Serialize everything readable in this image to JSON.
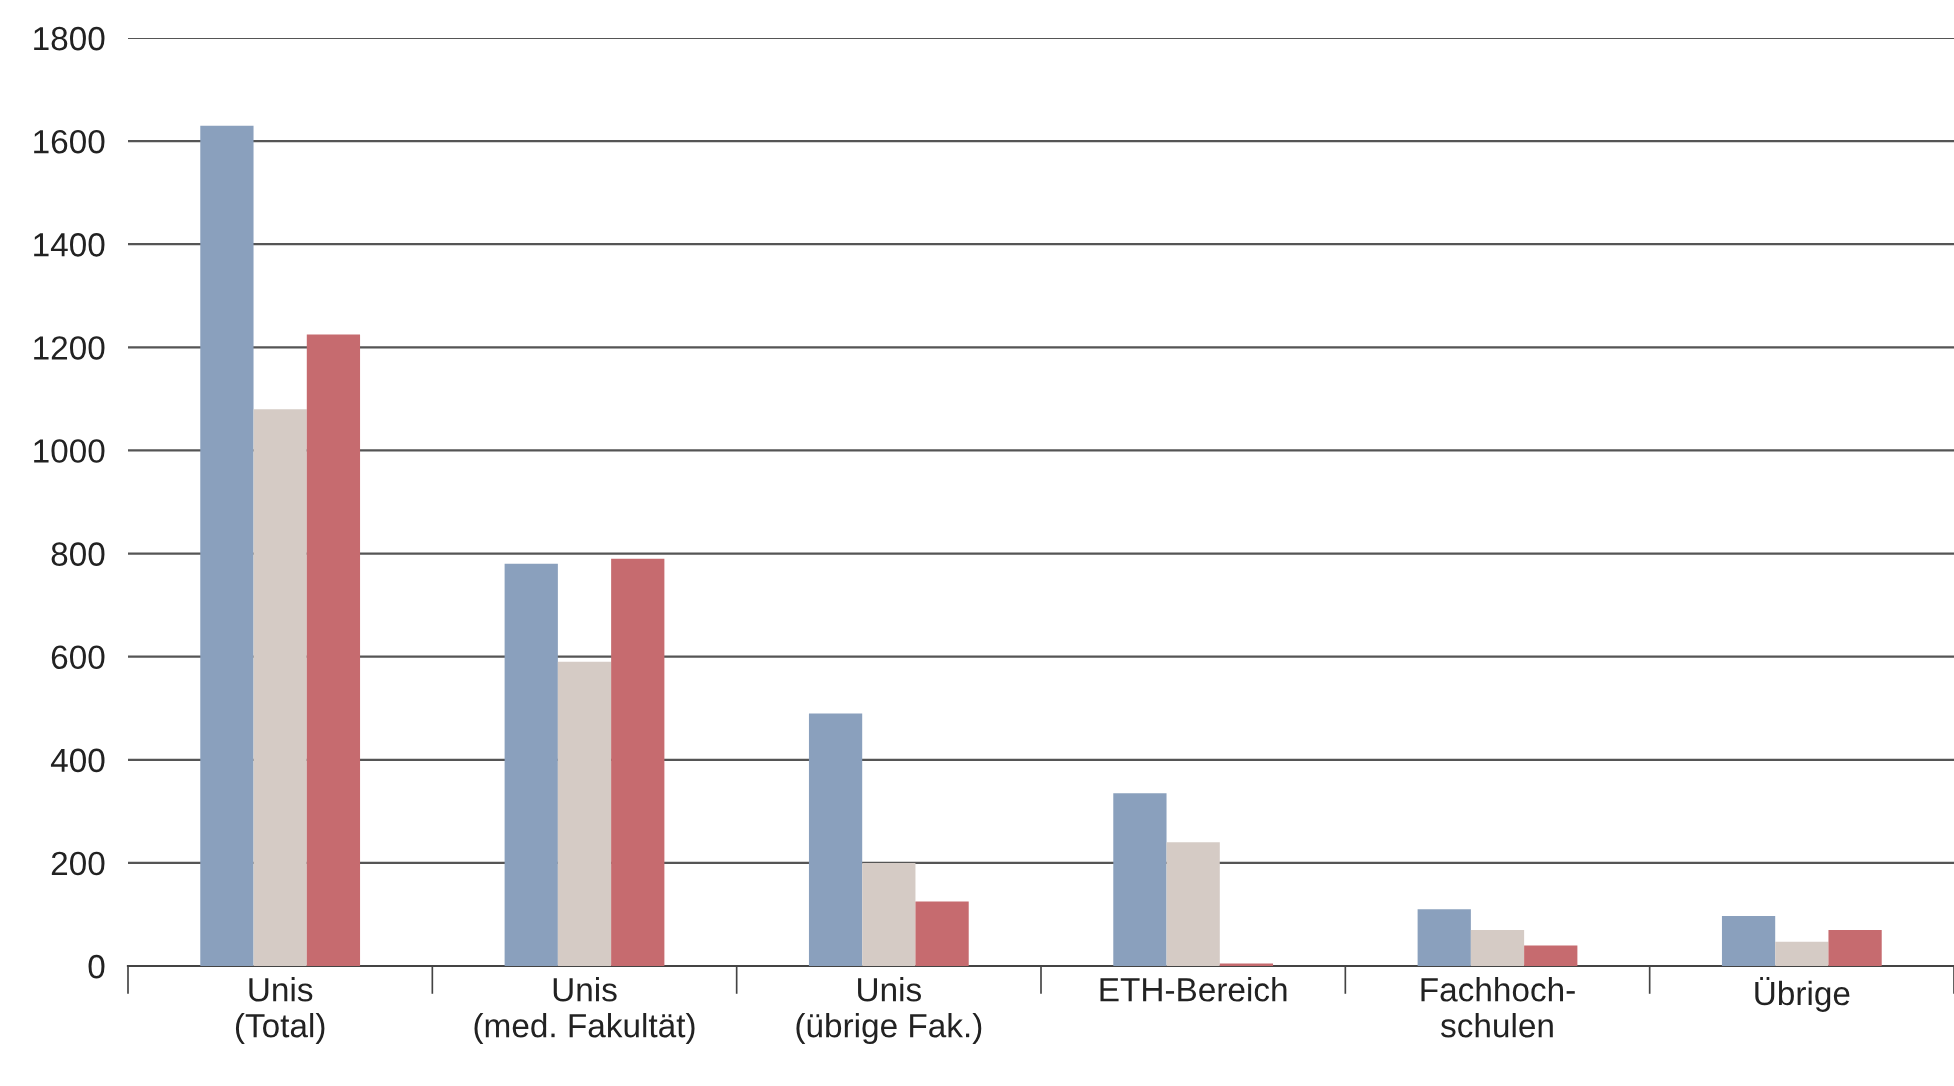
{
  "chart_data": {
    "type": "bar",
    "categories": [
      "Unis\n(Total)",
      "Unis\n(med. Fakultät)",
      "Unis\n(übrige Fak.)",
      "ETH-Bereich",
      "Fachhoch-\nschulen",
      "Übrige"
    ],
    "series": [
      {
        "color": "#8aa0bd",
        "values": [
          1630,
          780,
          490,
          335,
          110,
          97
        ]
      },
      {
        "color": "#d5cbc5",
        "values": [
          1080,
          590,
          200,
          240,
          70,
          47
        ]
      },
      {
        "color": "#c66b6f",
        "values": [
          1225,
          790,
          125,
          5,
          40,
          70
        ]
      }
    ],
    "ylim": [
      0,
      1800
    ],
    "yticks": [
      0,
      200,
      400,
      600,
      800,
      1000,
      1200,
      1400,
      1600,
      1800
    ],
    "grid": "y",
    "legend": false
  }
}
